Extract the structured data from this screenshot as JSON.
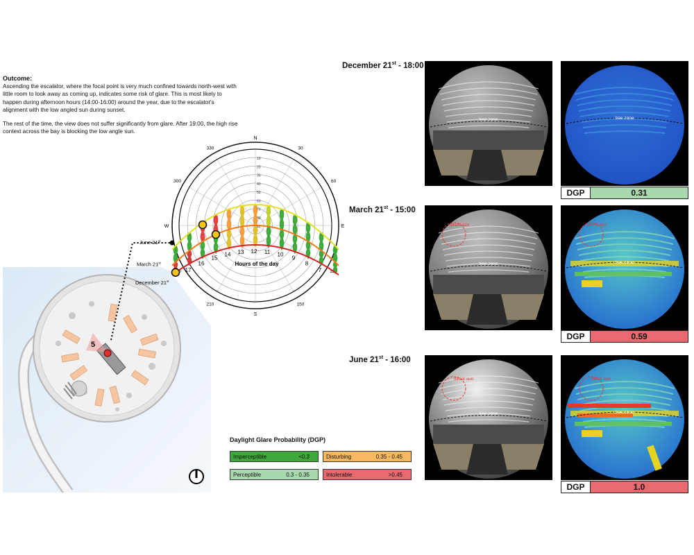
{
  "outcome": {
    "heading": "Outcome:",
    "paragraph1": "Ascending the escalator, where the focal point is very much confined towards north-west with little room to look away as coming up, indicates some risk of glare. This is most likely to happen during afternoon hours (14:00-16:00) around the year, due to the escalator's alignment with the low angled sun during sunset.",
    "paragraph2": "The rest of the time, the view does not suffer significantly from glare. After 19:00, the high rise context across the bay is blocking the low angle sun."
  },
  "sunpath": {
    "compass": {
      "N": "N",
      "S": "S",
      "E": "E",
      "W": "W"
    },
    "azimuth_labels": [
      "330",
      "30",
      "300",
      "60",
      "240",
      "120",
      "210",
      "150"
    ],
    "altitude_labels": [
      "90",
      "80",
      "70",
      "60",
      "50",
      "40",
      "30",
      "20",
      "10"
    ],
    "season_labels": {
      "june": "June 21",
      "march": "March 21",
      "december": "December 21",
      "suffix": "st"
    },
    "hours": [
      "17",
      "16",
      "15",
      "14",
      "13",
      "12",
      "11",
      "10",
      "9",
      "8",
      "7"
    ],
    "hours_caption": "Hours of the day"
  },
  "plan": {
    "viewpoint_number": "5"
  },
  "renders": [
    {
      "title": "December 21",
      "title_sup": "st",
      "title_time": " - 18:00",
      "tree_zone": "tree zone",
      "direct_sun": "",
      "dgp_label": "DGP",
      "dgp_value": "0.31",
      "dgp_color": "#a8d8ab"
    },
    {
      "title": "March 21",
      "title_sup": "st",
      "title_time": " - 15:00",
      "tree_zone": "tree zone",
      "direct_sun": "direct sun",
      "dgp_label": "DGP",
      "dgp_value": "0.59",
      "dgp_color": "#e66a6e"
    },
    {
      "title": "June 21",
      "title_sup": "st",
      "title_time": " - 16:00",
      "tree_zone": "tree zone",
      "direct_sun": "direct sun",
      "dgp_label": "DGP",
      "dgp_value": "1.0",
      "dgp_color": "#e66a6e"
    }
  ],
  "legend": {
    "title": "Daylight Glare Probability (DGP)",
    "items": [
      {
        "label": "Imperceptible",
        "range": "<0.3",
        "color": "#3fa83a"
      },
      {
        "label": "Disturbing",
        "range": "0.35 - 0.45",
        "color": "#f6b860"
      },
      {
        "label": "Perceptible",
        "range": "0.3 - 0.35",
        "color": "#a8d8ab"
      },
      {
        "label": "Intolerable",
        "range": ">0.45",
        "color": "#e66a6e"
      }
    ]
  }
}
